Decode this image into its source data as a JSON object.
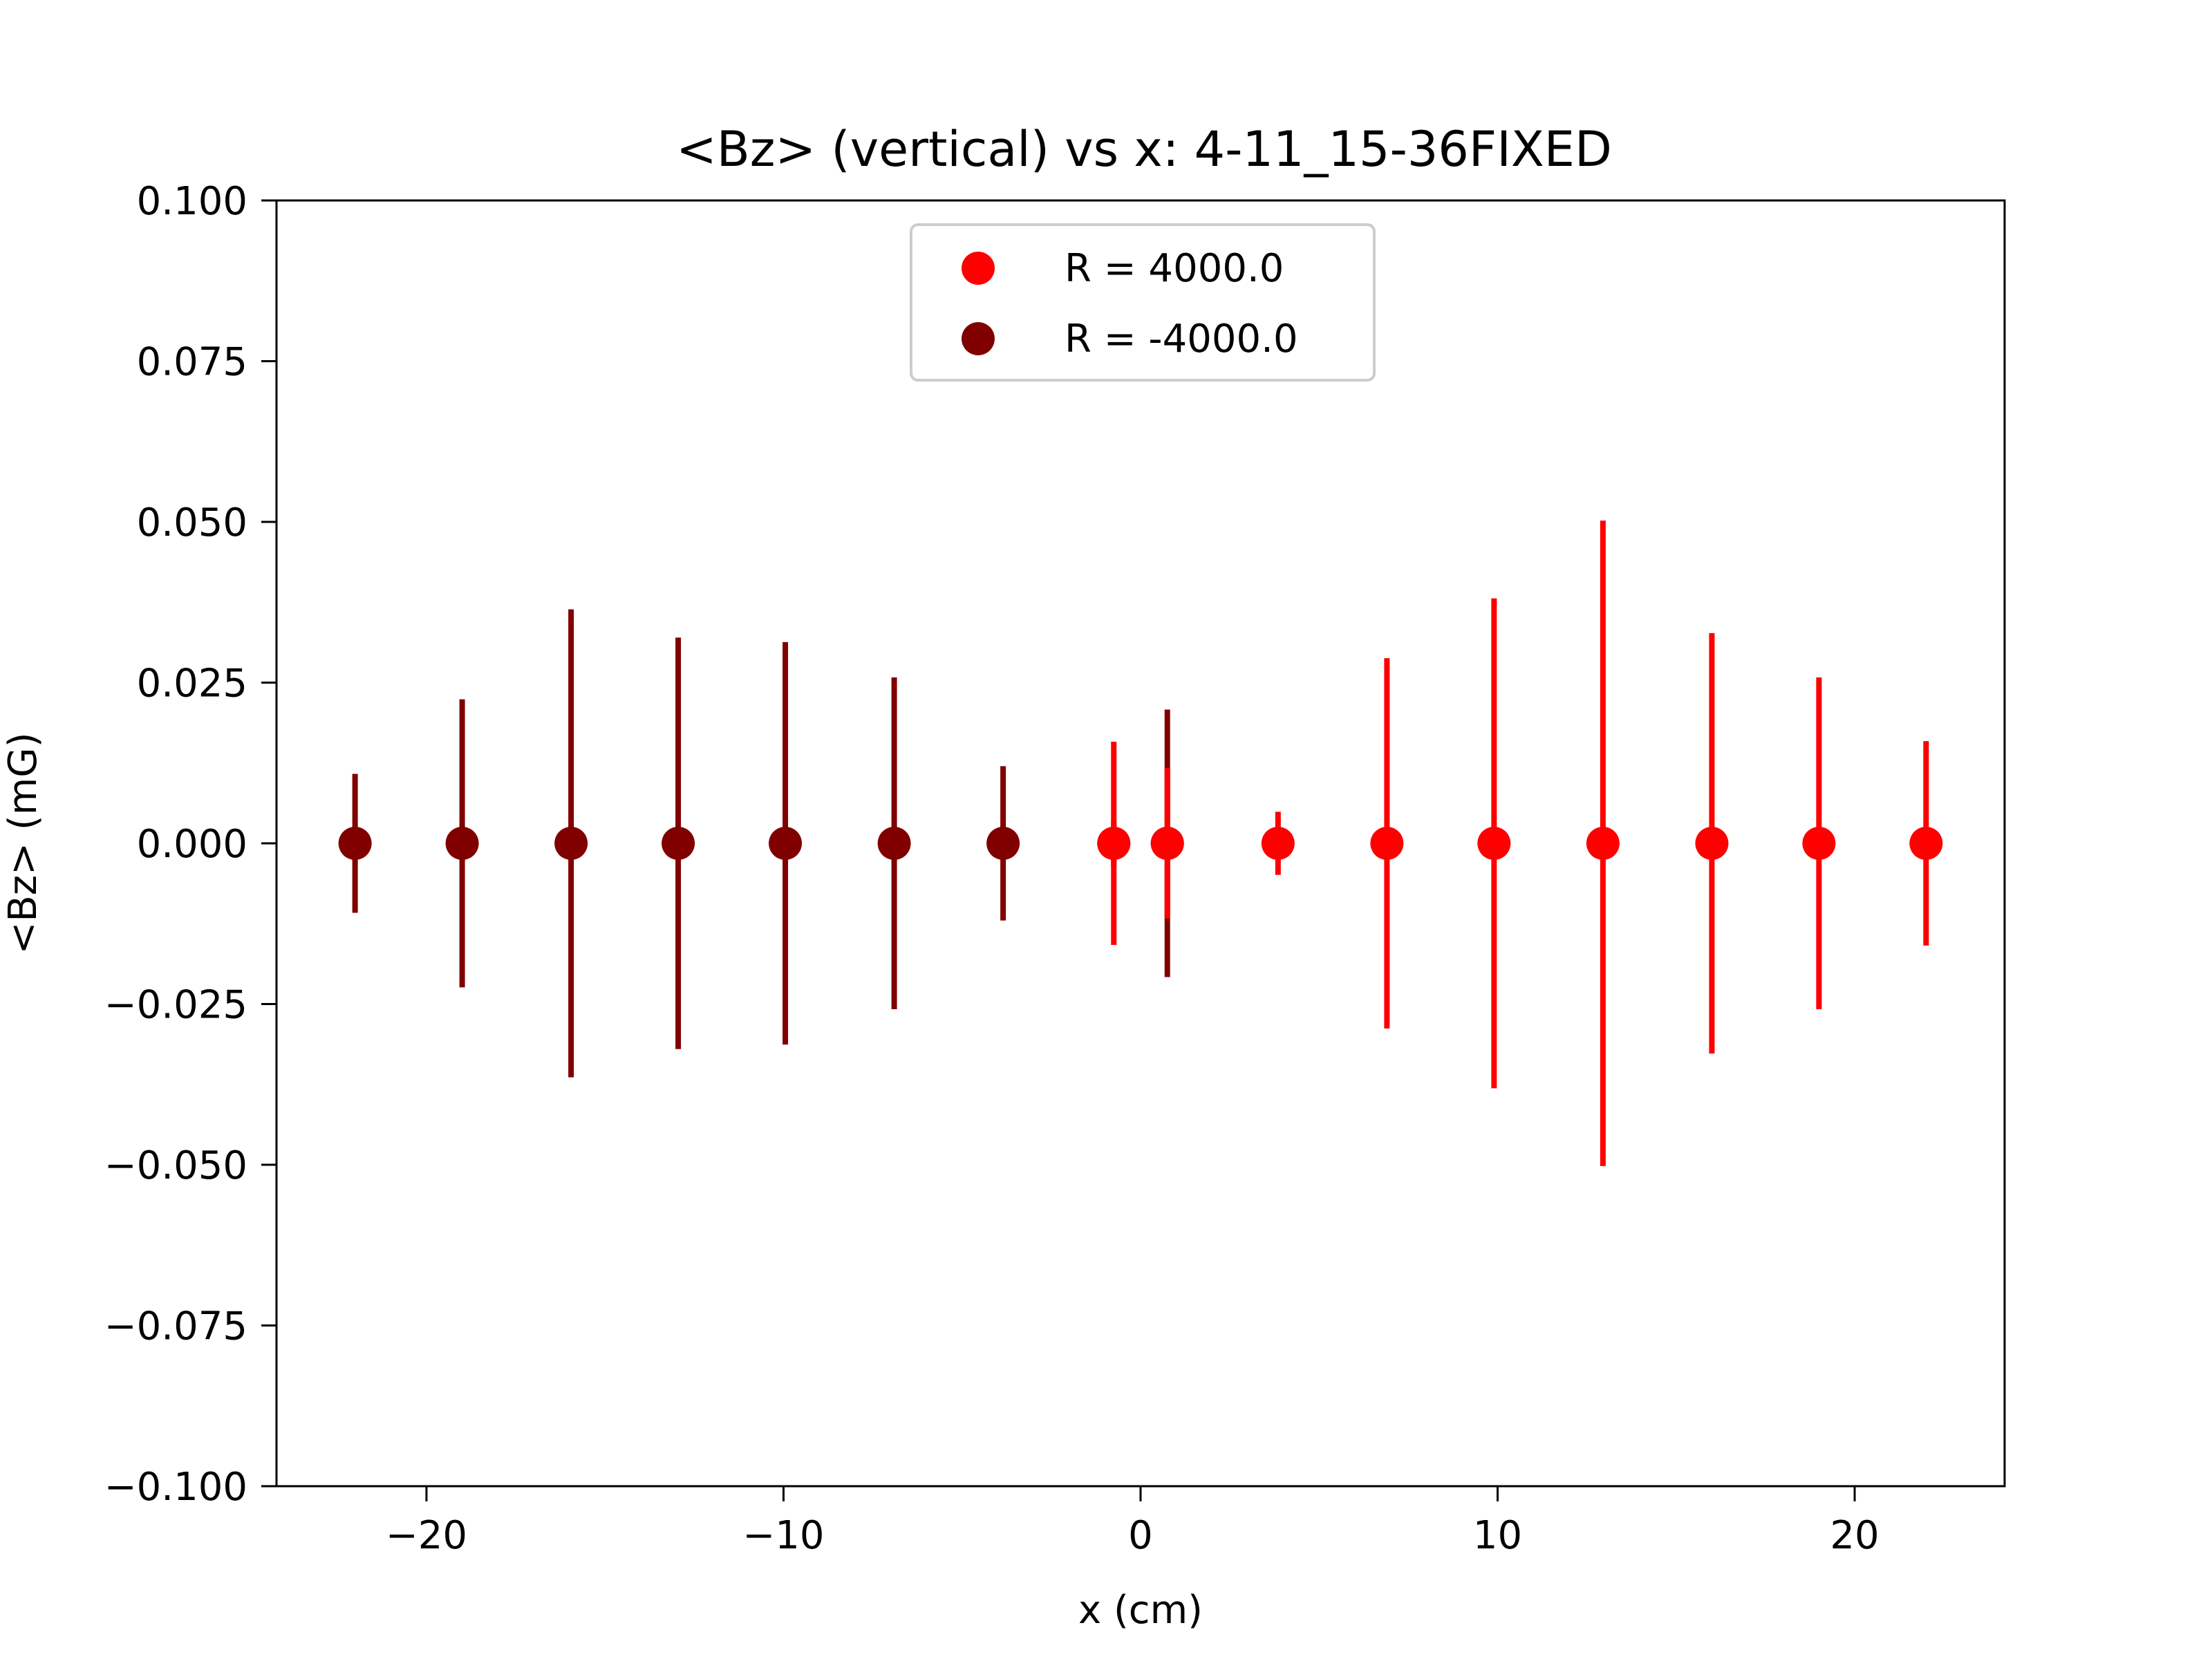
{
  "chart_data": {
    "type": "scatter",
    "title": "<Bz> (vertical) vs x: 4-11_15-36FIXED",
    "xlabel": "x (cm)",
    "ylabel": "<Bz> (mG)",
    "xlim": [
      -24.2,
      24.2
    ],
    "ylim": [
      -0.1,
      0.1
    ],
    "xticks": [
      -20,
      -10,
      0,
      10,
      20
    ],
    "xtick_labels": [
      "−20",
      "−10",
      "0",
      "10",
      "20"
    ],
    "yticks": [
      0.1,
      0.075,
      0.05,
      0.025,
      0.0,
      -0.025,
      -0.05,
      -0.075,
      -0.1
    ],
    "ytick_labels": [
      "0.100",
      "0.075",
      "0.050",
      "0.025",
      "0.000",
      "−0.025",
      "−0.050",
      "−0.075",
      "−0.100"
    ],
    "grid": false,
    "legend_position": "upper center",
    "series": [
      {
        "name": "R = 4000.0",
        "color": "#ff0000",
        "x": [
          -0.75,
          0.75,
          3.85,
          6.9,
          9.9,
          12.95,
          16.0,
          19.0,
          22.0
        ],
        "y": [
          0,
          0,
          0,
          0,
          0,
          0,
          0,
          0,
          0
        ],
        "yerr": [
          0.0158,
          0.0117,
          0.0049,
          0.0288,
          0.0381,
          0.0502,
          0.0327,
          0.0258,
          0.0159
        ]
      },
      {
        "name": "R = -4000.0",
        "color": "#800000",
        "x": [
          -22.0,
          -19.0,
          -15.95,
          -12.95,
          -9.95,
          -6.9,
          -3.85,
          -0.75,
          0.75
        ],
        "y": [
          0,
          0,
          0,
          0,
          0,
          0,
          0,
          0,
          0
        ],
        "yerr": [
          0.0108,
          0.0224,
          0.0364,
          0.032,
          0.0313,
          0.0258,
          0.012,
          0.0035,
          0.0208
        ]
      }
    ]
  }
}
